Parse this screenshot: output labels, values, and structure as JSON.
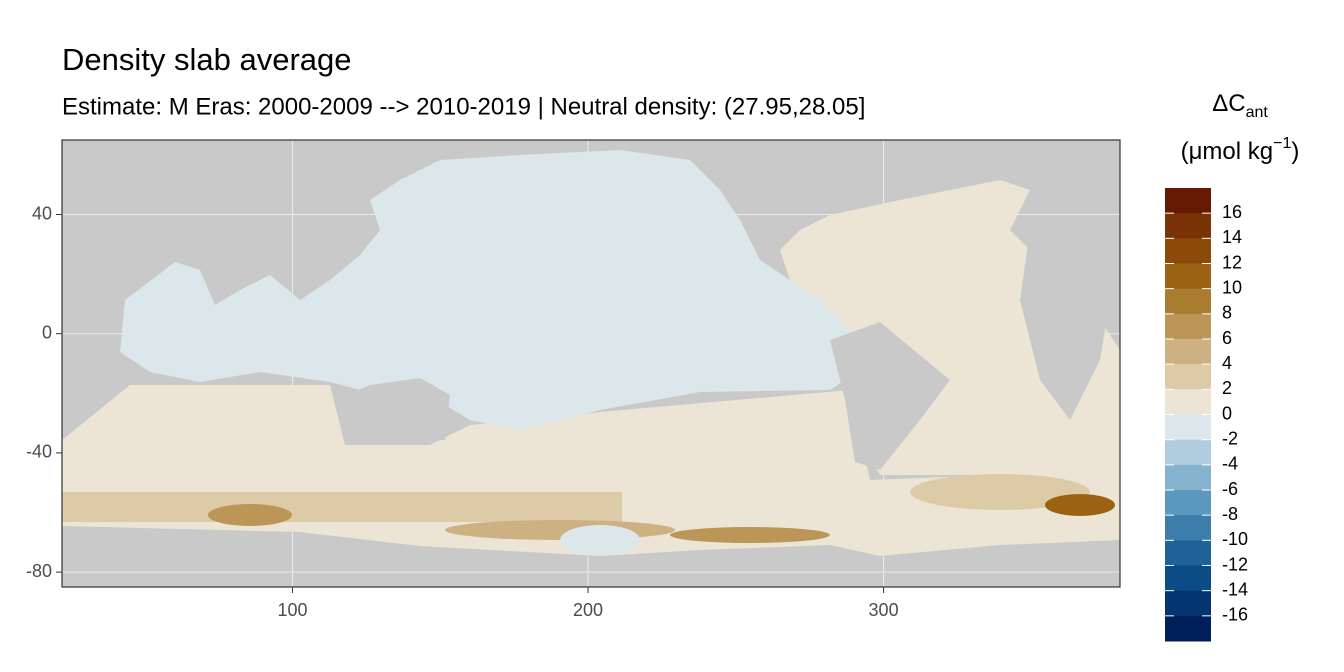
{
  "chart_data": {
    "type": "map",
    "title": "Density slab average",
    "subtitle": "Estimate: M Eras: 2000-2009 --> 2010-2019 | Neutral density: (27.95,28.05]",
    "xlim": [
      22,
      380
    ],
    "xticks": [
      100,
      200,
      300
    ],
    "ylim": [
      -85,
      65
    ],
    "yticks": [
      40,
      0,
      -40,
      -80
    ],
    "grid": true,
    "legend": {
      "title_main": "ΔC",
      "title_sub": "ant",
      "unit_prefix": "(μmol kg",
      "unit_exponent": "−1",
      "unit_suffix": ")",
      "breaks": [
        16,
        14,
        12,
        10,
        8,
        6,
        4,
        2,
        0,
        -2,
        -4,
        -6,
        -8,
        -10,
        -12,
        -14,
        -16
      ],
      "colors": [
        "#661a03",
        "#7a3306",
        "#8b4a0a",
        "#9b6213",
        "#aa7c30",
        "#bb9656",
        "#cdb183",
        "#ddcaa6",
        "#ece5d6",
        "#dce7eb",
        "#b0cde0",
        "#85b2cd",
        "#5c97bd",
        "#3c7dac",
        "#1f6298",
        "#0b4b86",
        "#053570",
        "#00205b"
      ]
    }
  }
}
